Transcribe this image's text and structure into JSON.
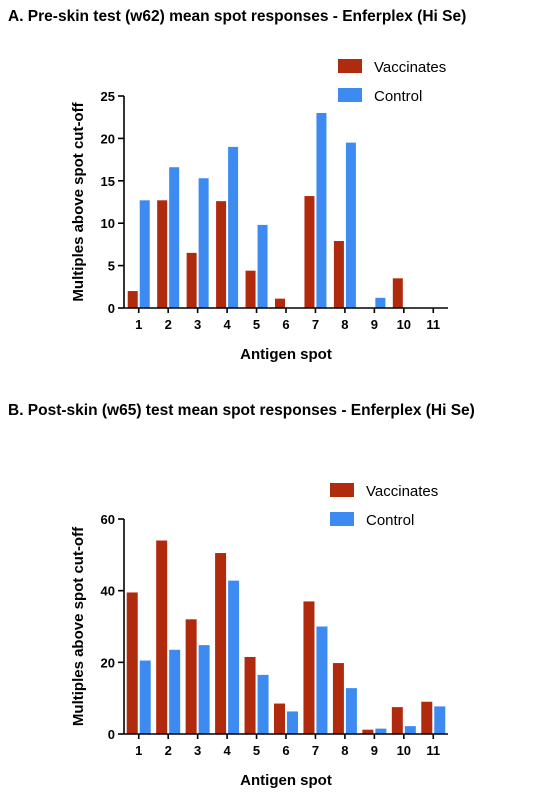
{
  "colors": {
    "vaccinates": "#B02A0E",
    "control": "#3D8BF0",
    "axis": "#000000"
  },
  "chart_data": [
    {
      "type": "bar",
      "title": "A. Pre-skin test (w62) mean spot responses - Enferplex (Hi Se)",
      "xlabel": "Antigen spot",
      "ylabel": "Multiples above spot cut-off",
      "categories": [
        "1",
        "2",
        "3",
        "4",
        "5",
        "6",
        "7",
        "8",
        "9",
        "10",
        "11"
      ],
      "ylim": [
        0,
        25
      ],
      "yticks": [
        0,
        5,
        10,
        15,
        20,
        25
      ],
      "legend_position": "top-right",
      "series": [
        {
          "name": "Vaccinates",
          "values": [
            2.0,
            12.7,
            6.5,
            12.6,
            4.4,
            1.1,
            13.2,
            7.9,
            0,
            3.5,
            0
          ]
        },
        {
          "name": "Control",
          "values": [
            12.7,
            16.6,
            15.3,
            19.0,
            9.8,
            0,
            23.0,
            19.5,
            1.2,
            0,
            0
          ]
        }
      ]
    },
    {
      "type": "bar",
      "title": "B. Post-skin (w65) test mean spot responses - Enferplex (Hi Se)",
      "xlabel": "Antigen spot",
      "ylabel": "Multiples above spot cut-off",
      "categories": [
        "1",
        "2",
        "3",
        "4",
        "5",
        "6",
        "7",
        "8",
        "9",
        "10",
        "11"
      ],
      "ylim": [
        0,
        60
      ],
      "yticks": [
        0,
        20,
        40,
        60
      ],
      "legend_position": "top-right",
      "series": [
        {
          "name": "Vaccinates",
          "values": [
            39.5,
            54.0,
            32.0,
            50.5,
            21.5,
            8.5,
            37.0,
            19.8,
            1.2,
            7.5,
            9.0
          ]
        },
        {
          "name": "Control",
          "values": [
            20.5,
            23.5,
            24.8,
            42.8,
            16.5,
            6.3,
            30.0,
            12.8,
            1.5,
            2.2,
            7.7
          ]
        }
      ]
    }
  ]
}
